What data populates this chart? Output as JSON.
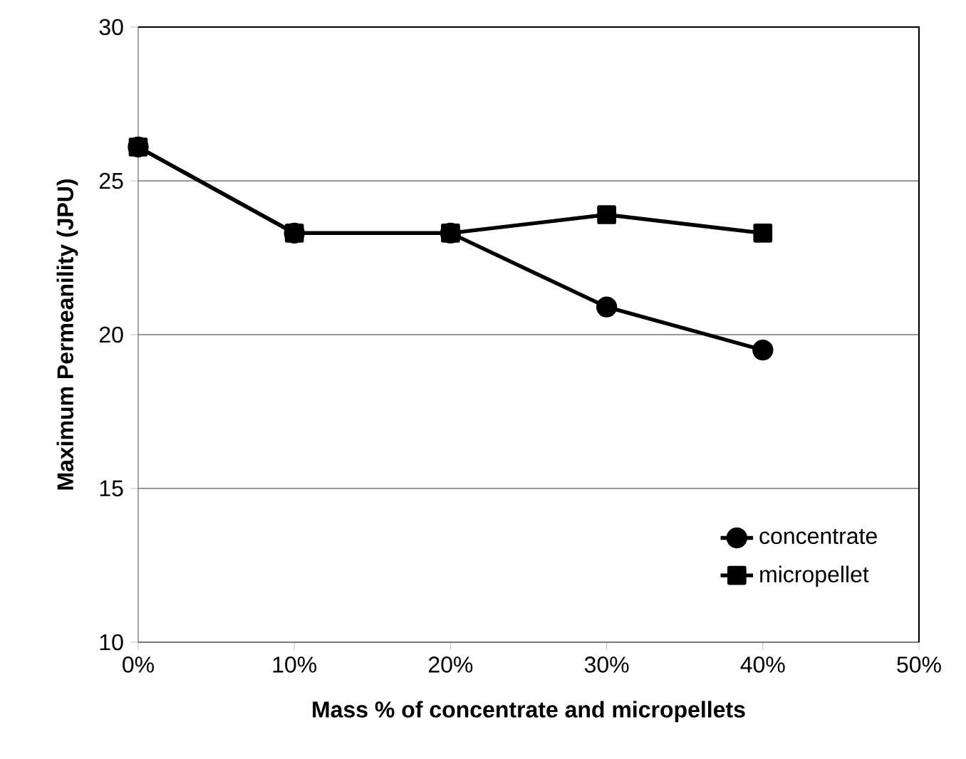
{
  "chart_data": {
    "type": "line",
    "xlabel": "Mass % of concentrate and micropellets",
    "ylabel": "Maximum Permeanility (JPU)",
    "x": [
      0,
      10,
      20,
      30,
      40
    ],
    "series": [
      {
        "name": "concentrate",
        "color": "#000000",
        "marker": "circle",
        "values": [
          26.1,
          23.3,
          23.3,
          20.9,
          19.5
        ]
      },
      {
        "name": "micropellet",
        "color": "#000000",
        "marker": "square",
        "values": [
          26.1,
          23.3,
          23.3,
          23.9,
          23.3
        ]
      }
    ],
    "xlim": [
      0,
      50
    ],
    "xticks": [
      {
        "value": 0,
        "label": "0%"
      },
      {
        "value": 10,
        "label": "10%"
      },
      {
        "value": 20,
        "label": "20%"
      },
      {
        "value": 30,
        "label": "30%"
      },
      {
        "value": 40,
        "label": "40%"
      },
      {
        "value": 50,
        "label": "50%"
      }
    ],
    "ylim": [
      10,
      30
    ],
    "yticks": [
      10,
      15,
      20,
      25,
      30
    ],
    "grid": "y",
    "legend": "bottom right",
    "line_style": "solid"
  }
}
